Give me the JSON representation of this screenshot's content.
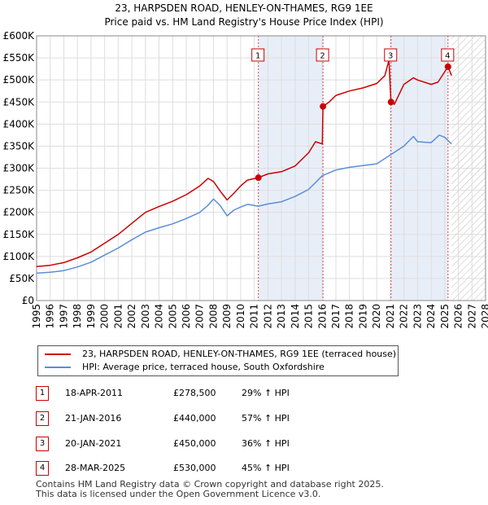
{
  "title": {
    "line1": "23, HARPSDEN ROAD, HENLEY-ON-THAMES, RG9 1EE",
    "line2": "Price paid vs. HM Land Registry's House Price Index (HPI)"
  },
  "chart_data": {
    "type": "line",
    "title": "23, HARPSDEN ROAD, HENLEY-ON-THAMES, RG9 1EE",
    "subtitle": "Price paid vs. HM Land Registry's House Price Index (HPI)",
    "xlabel": "",
    "ylabel": "",
    "xlim": [
      1995,
      2028
    ],
    "ylim": [
      0,
      600000
    ],
    "x_ticks": [
      "1995",
      "1996",
      "1997",
      "1998",
      "1999",
      "2000",
      "2001",
      "2002",
      "2003",
      "2004",
      "2005",
      "2006",
      "2007",
      "2008",
      "2009",
      "2010",
      "2011",
      "2012",
      "2013",
      "2014",
      "2015",
      "2016",
      "2017",
      "2018",
      "2019",
      "2020",
      "2021",
      "2022",
      "2023",
      "2024",
      "2025",
      "2026",
      "2027",
      "2028"
    ],
    "y_ticks": [
      {
        "value": 0,
        "label": "£0"
      },
      {
        "value": 50000,
        "label": "£50K"
      },
      {
        "value": 100000,
        "label": "£100K"
      },
      {
        "value": 150000,
        "label": "£150K"
      },
      {
        "value": 200000,
        "label": "£200K"
      },
      {
        "value": 250000,
        "label": "£250K"
      },
      {
        "value": 300000,
        "label": "£300K"
      },
      {
        "value": 350000,
        "label": "£350K"
      },
      {
        "value": 400000,
        "label": "£400K"
      },
      {
        "value": 450000,
        "label": "£450K"
      },
      {
        "value": 500000,
        "label": "£500K"
      },
      {
        "value": 550000,
        "label": "£550K"
      },
      {
        "value": 600000,
        "label": "£600K"
      }
    ],
    "grid": true,
    "shaded_spans": [
      [
        2011.3,
        2016.05
      ],
      [
        2021.05,
        2025.24
      ]
    ],
    "future_hatch_from": 2025.5,
    "series": [
      {
        "name": "23, HARPSDEN ROAD, HENLEY-ON-THAMES, RG9 1EE (terraced house)",
        "color": "#cc0000",
        "x": [
          1995,
          1996,
          1997,
          1998,
          1999,
          2000,
          2001,
          2002,
          2003,
          2004,
          2005,
          2006,
          2007,
          2007.6,
          2008,
          2008.5,
          2009,
          2009.5,
          2010,
          2010.5,
          2011.3,
          2012,
          2013,
          2014,
          2015,
          2015.5,
          2016.0,
          2016.05,
          2016.5,
          2017,
          2018,
          2019,
          2020,
          2020.6,
          2020.9,
          2021.05,
          2021.3,
          2022,
          2022.7,
          2023,
          2024,
          2024.5,
          2025.24,
          2025.5
        ],
        "y": [
          77000,
          80000,
          86000,
          97000,
          110000,
          130000,
          150000,
          175000,
          200000,
          213000,
          225000,
          240000,
          260000,
          277000,
          270000,
          248000,
          228000,
          243000,
          260000,
          273000,
          278500,
          287000,
          292000,
          305000,
          335000,
          360000,
          355000,
          440000,
          450000,
          465000,
          475000,
          482000,
          492000,
          510000,
          545000,
          450000,
          445000,
          490000,
          505000,
          500000,
          490000,
          495000,
          530000,
          510000
        ]
      },
      {
        "name": "HPI: Average price, terraced house, South Oxfordshire",
        "color": "#5b8ed6",
        "x": [
          1995,
          1996,
          1997,
          1998,
          1999,
          2000,
          2001,
          2002,
          2003,
          2004,
          2005,
          2006,
          2007,
          2007.6,
          2008,
          2008.5,
          2009,
          2009.5,
          2010,
          2010.5,
          2011.3,
          2012,
          2013,
          2014,
          2015,
          2016,
          2017,
          2018,
          2019,
          2020,
          2021,
          2022,
          2022.7,
          2023,
          2024,
          2024.6,
          2025,
          2025.5
        ],
        "y": [
          62000,
          64000,
          68000,
          76000,
          87000,
          103000,
          119000,
          138000,
          155000,
          165000,
          174000,
          186000,
          200000,
          216000,
          230000,
          215000,
          192000,
          205000,
          212000,
          218000,
          214000,
          219000,
          224000,
          236000,
          252000,
          283000,
          296000,
          302000,
          306000,
          310000,
          330000,
          350000,
          372000,
          360000,
          358000,
          375000,
          370000,
          355000
        ]
      }
    ],
    "sales": [
      {
        "n": "1",
        "x": 2011.3,
        "date": "18-APR-2011",
        "price": "£278,500",
        "value": 278500,
        "hpi": "29% ↑ HPI"
      },
      {
        "n": "2",
        "x": 2016.05,
        "date": "21-JAN-2016",
        "price": "£440,000",
        "value": 440000,
        "hpi": "57% ↑ HPI"
      },
      {
        "n": "3",
        "x": 2021.05,
        "date": "20-JAN-2021",
        "price": "£450,000",
        "value": 450000,
        "hpi": "36% ↑ HPI"
      },
      {
        "n": "4",
        "x": 2025.24,
        "date": "28-MAR-2025",
        "price": "£530,000",
        "value": 530000,
        "hpi": "45% ↑ HPI"
      }
    ]
  },
  "legend": {
    "red_label": "23, HARPSDEN ROAD, HENLEY-ON-THAMES, RG9 1EE (terraced house)",
    "blue_label": "HPI: Average price, terraced house, South Oxfordshire"
  },
  "footer": {
    "line1": "Contains HM Land Registry data © Crown copyright and database right 2025.",
    "line2": "This data is licensed under the Open Government Licence v3.0."
  }
}
